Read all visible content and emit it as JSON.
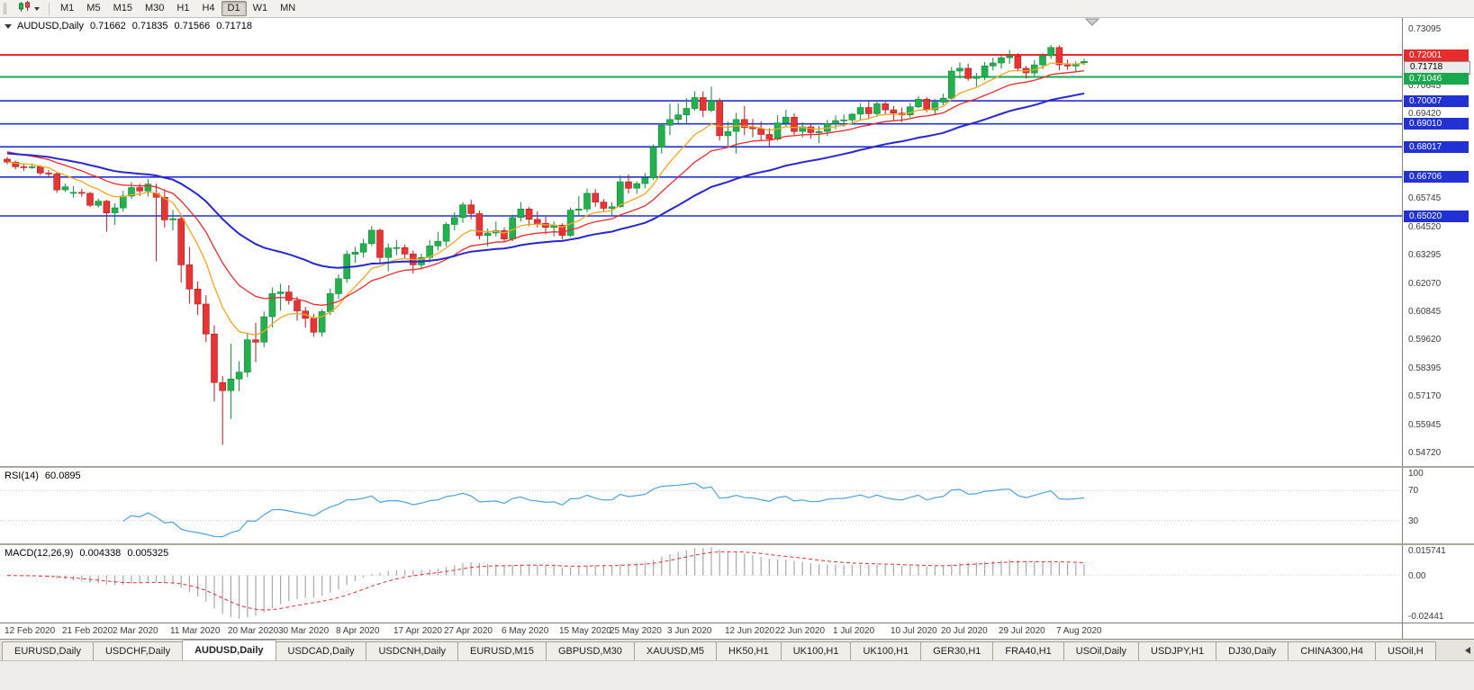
{
  "toolbar": {
    "timeframes": [
      "M1",
      "M5",
      "M15",
      "M30",
      "H1",
      "H4",
      "D1",
      "W1",
      "MN"
    ],
    "active": "D1"
  },
  "chart_data": {
    "type": "candlestick",
    "symbol": "AUDUSD",
    "timeframe": "Daily",
    "header": {
      "symbol_period": "AUDUSD,Daily",
      "open": "0.71662",
      "high": "0.71835",
      "low": "0.71566",
      "close": "0.71718"
    },
    "colors": {
      "up": "#23b14d",
      "up_border": "#0f8a3a",
      "down": "#e53535",
      "down_border": "#b21d1d"
    },
    "price_axis": {
      "max": 0.736,
      "min": 0.5418,
      "labels": [
        0.73095,
        0.70645,
        0.6942,
        0.65745,
        0.6452,
        0.63295,
        0.6207,
        0.60845,
        0.5962,
        0.58395,
        0.5717,
        0.55945,
        0.5472
      ]
    },
    "levels": [
      {
        "price": 0.72001,
        "color": "#e82c2c",
        "line": true,
        "width": 2,
        "name": "resistance-line"
      },
      {
        "price": 0.71718,
        "color": "#ebebeb",
        "text_color": "#000000",
        "border_color": "#8f8f8f",
        "line": false,
        "name": "current-price"
      },
      {
        "price": 0.71046,
        "color": "#18a94e",
        "line": true,
        "width": 2,
        "name": "support-line"
      },
      {
        "price": 0.70007,
        "color": "#2231d4",
        "line": true,
        "width": 1.6,
        "name": "support-line"
      },
      {
        "price": 0.6901,
        "color": "#2231d4",
        "line": true,
        "width": 1.6,
        "name": "support-line"
      },
      {
        "price": 0.68017,
        "color": "#2231d4",
        "line": true,
        "width": 1.6,
        "name": "support-line"
      },
      {
        "price": 0.66706,
        "color": "#2231d4",
        "line": true,
        "width": 1.6,
        "name": "support-line"
      },
      {
        "price": 0.6502,
        "color": "#2231d4",
        "line": true,
        "width": 1.6,
        "name": "support-line"
      }
    ],
    "moving_averages": [
      {
        "period": 9,
        "color": "#f5a623",
        "width": 1.3,
        "seed_offset": 0
      },
      {
        "period": 18,
        "color": "#ef2929",
        "width": 1.3,
        "seed_offset": 0.005
      },
      {
        "period": 40,
        "color": "#2727cf",
        "width": 2,
        "seed_offset": 0.004
      }
    ],
    "date_ticks": [
      {
        "i": 0,
        "label": "12 Feb 2020"
      },
      {
        "i": 7,
        "label": "21 Feb 2020"
      },
      {
        "i": 13,
        "label": "2 Mar 2020"
      },
      {
        "i": 20,
        "label": "11 Mar 2020"
      },
      {
        "i": 27,
        "label": "20 Mar 2020"
      },
      {
        "i": 33,
        "label": "30 Mar 2020"
      },
      {
        "i": 40,
        "label": "8 Apr 2020"
      },
      {
        "i": 47,
        "label": "17 Apr 2020"
      },
      {
        "i": 53,
        "label": "27 Apr 2020"
      },
      {
        "i": 60,
        "label": "6 May 2020"
      },
      {
        "i": 67,
        "label": "15 May 2020"
      },
      {
        "i": 73,
        "label": "25 May 2020"
      },
      {
        "i": 80,
        "label": "3 Jun 2020"
      },
      {
        "i": 87,
        "label": "12 Jun 2020"
      },
      {
        "i": 93,
        "label": "22 Jun 2020"
      },
      {
        "i": 100,
        "label": "1 Jul 2020"
      },
      {
        "i": 107,
        "label": "10 Jul 2020"
      },
      {
        "i": 113,
        "label": "20 Jul 2020"
      },
      {
        "i": 120,
        "label": "29 Jul 2020"
      },
      {
        "i": 127,
        "label": "7 Aug 2020"
      }
    ],
    "candles": [
      [
        0.6748,
        0.6758,
        0.6725,
        0.6735
      ],
      [
        0.6735,
        0.6742,
        0.6705,
        0.6715
      ],
      [
        0.6715,
        0.6725,
        0.6698,
        0.6713
      ],
      [
        0.6713,
        0.673,
        0.6706,
        0.6715
      ],
      [
        0.6715,
        0.6722,
        0.6678,
        0.6688
      ],
      [
        0.6688,
        0.6702,
        0.6668,
        0.6685
      ],
      [
        0.6685,
        0.6692,
        0.6602,
        0.6615
      ],
      [
        0.6615,
        0.6642,
        0.6606,
        0.6628
      ],
      [
        0.66,
        0.6632,
        0.6582,
        0.6604
      ],
      [
        0.6604,
        0.662,
        0.6585,
        0.66
      ],
      [
        0.66,
        0.6606,
        0.654,
        0.6548
      ],
      [
        0.6548,
        0.6578,
        0.6538,
        0.6566
      ],
      [
        0.6566,
        0.6572,
        0.6433,
        0.6515
      ],
      [
        0.6515,
        0.6558,
        0.6463,
        0.6537
      ],
      [
        0.6537,
        0.6612,
        0.652,
        0.6588
      ],
      [
        0.6588,
        0.6648,
        0.6576,
        0.6625
      ],
      [
        0.6625,
        0.6642,
        0.6588,
        0.661
      ],
      [
        0.661,
        0.6662,
        0.6586,
        0.664
      ],
      [
        0.66,
        0.6642,
        0.6305,
        0.6583
      ],
      [
        0.6583,
        0.6618,
        0.6452,
        0.6485
      ],
      [
        0.6485,
        0.6528,
        0.6438,
        0.649
      ],
      [
        0.649,
        0.6502,
        0.6213,
        0.629
      ],
      [
        0.629,
        0.6368,
        0.6122,
        0.6185
      ],
      [
        0.6185,
        0.6218,
        0.6073,
        0.612
      ],
      [
        0.612,
        0.6158,
        0.5955,
        0.599
      ],
      [
        0.599,
        0.6028,
        0.5698,
        0.578
      ],
      [
        0.578,
        0.5808,
        0.551,
        0.5745
      ],
      [
        0.5745,
        0.5948,
        0.5622,
        0.5795
      ],
      [
        0.5795,
        0.5872,
        0.5742,
        0.5825
      ],
      [
        0.5825,
        0.5992,
        0.5803,
        0.5965
      ],
      [
        0.5965,
        0.6038,
        0.5868,
        0.5955
      ],
      [
        0.5955,
        0.6088,
        0.5932,
        0.6065
      ],
      [
        0.6065,
        0.6192,
        0.6018,
        0.6165
      ],
      [
        0.6165,
        0.6208,
        0.6092,
        0.6172
      ],
      [
        0.6172,
        0.6202,
        0.6118,
        0.6135
      ],
      [
        0.6135,
        0.6152,
        0.6048,
        0.609
      ],
      [
        0.609,
        0.6108,
        0.6018,
        0.6058
      ],
      [
        0.6058,
        0.6078,
        0.5978,
        0.5998
      ],
      [
        0.5998,
        0.6098,
        0.598,
        0.6087
      ],
      [
        0.6087,
        0.6188,
        0.6072,
        0.6165
      ],
      [
        0.6165,
        0.6248,
        0.6142,
        0.623
      ],
      [
        0.623,
        0.6352,
        0.6212,
        0.6336
      ],
      [
        0.6336,
        0.6368,
        0.6298,
        0.6345
      ],
      [
        0.6345,
        0.6402,
        0.6322,
        0.6382
      ],
      [
        0.6382,
        0.6458,
        0.6372,
        0.644
      ],
      [
        0.644,
        0.6447,
        0.63,
        0.6322
      ],
      [
        0.6322,
        0.6382,
        0.6262,
        0.6363
      ],
      [
        0.6363,
        0.6398,
        0.6332,
        0.6365
      ],
      [
        0.6365,
        0.6378,
        0.6318,
        0.6337
      ],
      [
        0.6337,
        0.6352,
        0.6252,
        0.629
      ],
      [
        0.629,
        0.6338,
        0.6268,
        0.6322
      ],
      [
        0.6322,
        0.6398,
        0.6298,
        0.6372
      ],
      [
        0.6372,
        0.6432,
        0.6352,
        0.6392
      ],
      [
        0.6392,
        0.6475,
        0.637,
        0.6465
      ],
      [
        0.6465,
        0.6518,
        0.6438,
        0.6495
      ],
      [
        0.6495,
        0.6562,
        0.6472,
        0.655
      ],
      [
        0.655,
        0.6572,
        0.6488,
        0.6512
      ],
      [
        0.6512,
        0.6526,
        0.64,
        0.6417
      ],
      [
        0.6417,
        0.6448,
        0.637,
        0.6428
      ],
      [
        0.6428,
        0.6478,
        0.6412,
        0.6438
      ],
      [
        0.6438,
        0.6452,
        0.6388,
        0.6402
      ],
      [
        0.6402,
        0.6508,
        0.6393,
        0.6495
      ],
      [
        0.6495,
        0.6562,
        0.6478,
        0.6532
      ],
      [
        0.6532,
        0.6542,
        0.6458,
        0.6487
      ],
      [
        0.6487,
        0.6522,
        0.6452,
        0.647
      ],
      [
        0.647,
        0.6498,
        0.6422,
        0.6452
      ],
      [
        0.6452,
        0.6478,
        0.6412,
        0.6462
      ],
      [
        0.6462,
        0.647,
        0.64,
        0.6417
      ],
      [
        0.6417,
        0.6538,
        0.641,
        0.6527
      ],
      [
        0.6527,
        0.6588,
        0.6502,
        0.6532
      ],
      [
        0.6532,
        0.662,
        0.6518,
        0.66
      ],
      [
        0.66,
        0.6618,
        0.6542,
        0.6562
      ],
      [
        0.6562,
        0.6575,
        0.6522,
        0.6535
      ],
      [
        0.6535,
        0.6562,
        0.6502,
        0.6542
      ],
      [
        0.6542,
        0.6678,
        0.6538,
        0.665
      ],
      [
        0.665,
        0.6682,
        0.66,
        0.6622
      ],
      [
        0.6622,
        0.6652,
        0.6598,
        0.6642
      ],
      [
        0.6642,
        0.6688,
        0.6622,
        0.6667
      ],
      [
        0.6667,
        0.6812,
        0.6658,
        0.68
      ],
      [
        0.68,
        0.6902,
        0.6772,
        0.6895
      ],
      [
        0.6895,
        0.6988,
        0.6852,
        0.692
      ],
      [
        0.692,
        0.699,
        0.6902,
        0.694
      ],
      [
        0.694,
        0.7013,
        0.6902,
        0.6968
      ],
      [
        0.6968,
        0.7043,
        0.6958,
        0.7015
      ],
      [
        0.7015,
        0.7042,
        0.693,
        0.696
      ],
      [
        0.696,
        0.7063,
        0.6952,
        0.7
      ],
      [
        0.7,
        0.7012,
        0.6828,
        0.685
      ],
      [
        0.685,
        0.6912,
        0.6798,
        0.6868
      ],
      [
        0.6868,
        0.6948,
        0.6772,
        0.692
      ],
      [
        0.692,
        0.6978,
        0.6852,
        0.6885
      ],
      [
        0.6885,
        0.6922,
        0.6842,
        0.688
      ],
      [
        0.688,
        0.6912,
        0.6832,
        0.6855
      ],
      [
        0.6855,
        0.6882,
        0.6802,
        0.6835
      ],
      [
        0.6835,
        0.6938,
        0.6828,
        0.6905
      ],
      [
        0.6905,
        0.6962,
        0.6888,
        0.693
      ],
      [
        0.693,
        0.6948,
        0.6852,
        0.6868
      ],
      [
        0.6868,
        0.6908,
        0.6842,
        0.6888
      ],
      [
        0.6888,
        0.6902,
        0.6838,
        0.6863
      ],
      [
        0.6863,
        0.6892,
        0.6818,
        0.6868
      ],
      [
        0.6868,
        0.6918,
        0.6848,
        0.6902
      ],
      [
        0.6902,
        0.6938,
        0.6878,
        0.6915
      ],
      [
        0.6915,
        0.6942,
        0.6888,
        0.6918
      ],
      [
        0.6918,
        0.6948,
        0.6898,
        0.6943
      ],
      [
        0.6943,
        0.699,
        0.6918,
        0.6972
      ],
      [
        0.6972,
        0.7,
        0.6921,
        0.6945
      ],
      [
        0.6945,
        0.7002,
        0.6932,
        0.6988
      ],
      [
        0.6988,
        0.6998,
        0.6942,
        0.6962
      ],
      [
        0.6962,
        0.6978,
        0.6918,
        0.6948
      ],
      [
        0.6948,
        0.6972,
        0.6908,
        0.694
      ],
      [
        0.694,
        0.6992,
        0.6928,
        0.6975
      ],
      [
        0.6975,
        0.7022,
        0.697,
        0.7008
      ],
      [
        0.7008,
        0.7018,
        0.6952,
        0.6962
      ],
      [
        0.6962,
        0.7008,
        0.6938,
        0.6995
      ],
      [
        0.6995,
        0.7032,
        0.6982,
        0.7012
      ],
      [
        0.7012,
        0.7148,
        0.7008,
        0.713
      ],
      [
        0.713,
        0.7168,
        0.7098,
        0.7142
      ],
      [
        0.7142,
        0.7162,
        0.7088,
        0.7098
      ],
      [
        0.7098,
        0.7122,
        0.7063,
        0.7105
      ],
      [
        0.7105,
        0.717,
        0.7091,
        0.7152
      ],
      [
        0.7152,
        0.7188,
        0.7132,
        0.7165
      ],
      [
        0.7165,
        0.72,
        0.714,
        0.7188
      ],
      [
        0.7188,
        0.7222,
        0.7161,
        0.7195
      ],
      [
        0.7195,
        0.7207,
        0.7128,
        0.7142
      ],
      [
        0.7142,
        0.7152,
        0.7098,
        0.7122
      ],
      [
        0.7122,
        0.7178,
        0.7108,
        0.7157
      ],
      [
        0.7157,
        0.7207,
        0.7138,
        0.7196
      ],
      [
        0.7196,
        0.7243,
        0.7183,
        0.7232
      ],
      [
        0.7232,
        0.7242,
        0.7133,
        0.7157
      ],
      [
        0.7157,
        0.718,
        0.7135,
        0.7152
      ],
      [
        0.7152,
        0.7172,
        0.7128,
        0.716
      ],
      [
        0.71662,
        0.71835,
        0.71566,
        0.71718
      ]
    ],
    "rsi": {
      "name": "RSI(14)",
      "value": "60.0895",
      "color": "#4ea3dd",
      "levels": [
        70,
        30
      ],
      "axis_labels": [
        100,
        70,
        30
      ],
      "range": [
        0,
        100
      ]
    },
    "macd": {
      "name": "MACD(12,26,9)",
      "value_main": "0.004338",
      "value_signal": "0.005325",
      "range": [
        -0.02441,
        0.015741
      ],
      "axis_labels": [
        {
          "v": 0.015741,
          "t": "0.015741"
        },
        {
          "v": 0,
          "t": "0.00"
        },
        {
          "v": -0.02441,
          "t": "-0.02441"
        }
      ],
      "histogram_color": "#a8a8a8",
      "signal_color": "#e03030"
    }
  },
  "tabs": {
    "active_index": 2,
    "items": [
      "EURUSD,Daily",
      "USDCHF,Daily",
      "AUDUSD,Daily",
      "USDCAD,Daily",
      "USDCNH,Daily",
      "EURUSD,M15",
      "GBPUSD,M30",
      "XAUUSD,M5",
      "HK50,H1",
      "UK100,H1",
      "UK100,H1",
      "GER30,H1",
      "FRA40,H1",
      "USOil,Daily",
      "USDJPY,H1",
      "DJ30,Daily",
      "CHINA300,H4",
      "USOil,H"
    ]
  }
}
